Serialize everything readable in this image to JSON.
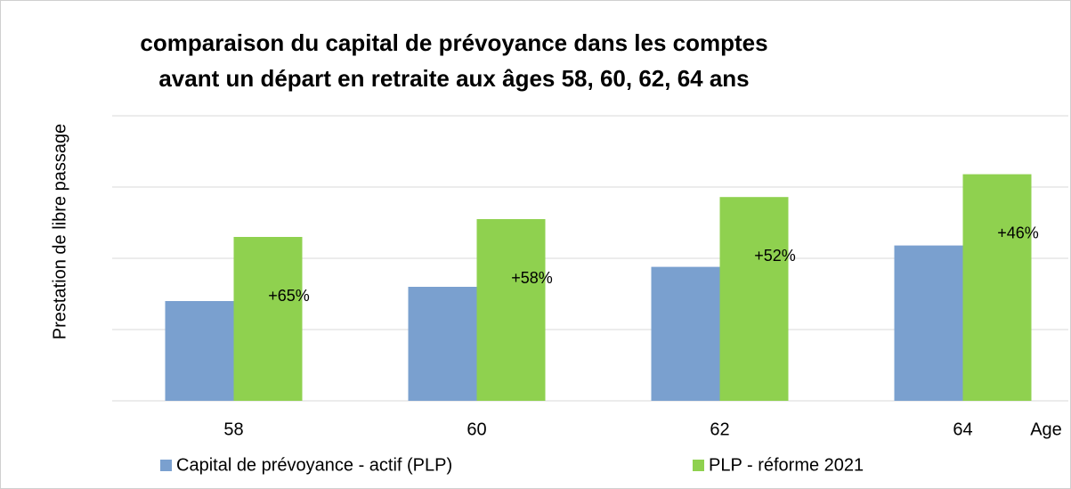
{
  "chart_data": {
    "type": "bar",
    "title": [
      "comparaison du capital de prévoyance dans les comptes",
      "avant un départ en retraite aux âges 58, 60, 62, 64 ans"
    ],
    "y_label": "Prestation de libre passage",
    "x_label": "Age",
    "categories": [
      "58",
      "60",
      "62",
      "64"
    ],
    "series": [
      {
        "name": "Capital de prévoyance - actif (PLP)",
        "color": "#7aa0cf",
        "values": [
          1.4,
          1.6,
          1.88,
          2.18
        ]
      },
      {
        "name": "PLP - réforme 2021",
        "color": "#8fd14f",
        "values": [
          2.3,
          2.55,
          2.86,
          3.18
        ]
      }
    ],
    "annotations": [
      "+65%",
      "+58%",
      "+52%",
      "+46%"
    ],
    "ylim": [
      0,
      4
    ],
    "yticks": [
      0,
      1,
      2,
      3,
      4
    ],
    "grid": true,
    "legend": "bottom"
  }
}
